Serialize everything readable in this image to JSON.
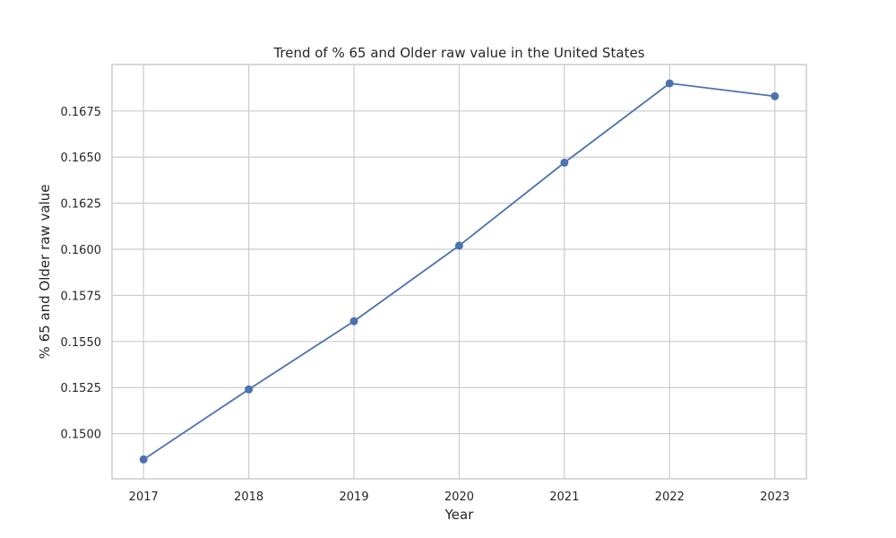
{
  "chart_data": {
    "type": "line",
    "title": "Trend of % 65 and Older raw value in the United States",
    "xlabel": "Year",
    "ylabel": "% 65 and Older raw value",
    "x": [
      2017,
      2018,
      2019,
      2020,
      2021,
      2022,
      2023
    ],
    "x_tick_labels": [
      "2017",
      "2018",
      "2019",
      "2020",
      "2021",
      "2022",
      "2023"
    ],
    "series": [
      {
        "values": [
          0.1486,
          0.1524,
          0.1561,
          0.1602,
          0.1647,
          0.169,
          0.1683
        ]
      }
    ],
    "y_ticks": [
      0.15,
      0.1525,
      0.155,
      0.1575,
      0.16,
      0.1625,
      0.165,
      0.1675
    ],
    "y_tick_labels": [
      "0.1500",
      "0.1525",
      "0.1550",
      "0.1575",
      "0.1600",
      "0.1625",
      "0.1650",
      "0.1675"
    ],
    "xlim": [
      2016.7,
      2023.3
    ],
    "ylim": [
      0.14755,
      0.17002
    ],
    "grid": true,
    "marker": "circle",
    "colors": {
      "series": "#4c72b0",
      "grid": "#cccccc",
      "frame": "#cccccc",
      "text": "#262626"
    }
  }
}
